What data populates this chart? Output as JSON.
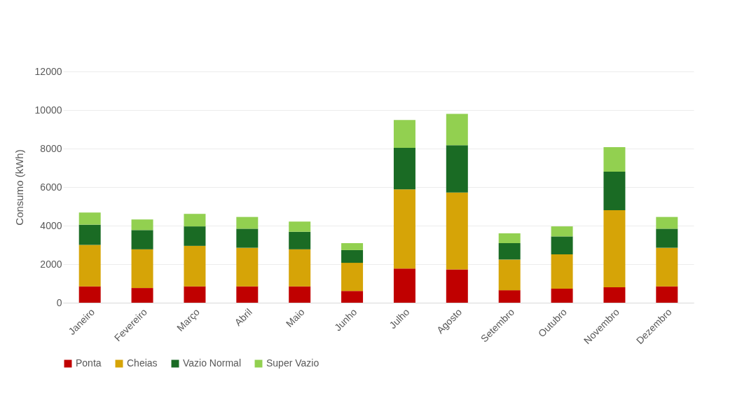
{
  "chart_data": {
    "type": "bar",
    "stacked": true,
    "ylabel": "Consumo (kWh)",
    "categories": [
      "Janeiro",
      "Fevereiro",
      "Março",
      "Abril",
      "Maio",
      "Junho",
      "Julho",
      "Agosto",
      "Setembro",
      "Outubro",
      "Novembro",
      "Dezembro"
    ],
    "series": [
      {
        "name": "Ponta",
        "color": "#c00000",
        "values": [
          850,
          760,
          850,
          850,
          850,
          610,
          1770,
          1730,
          650,
          730,
          800,
          850
        ]
      },
      {
        "name": "Cheias",
        "color": "#d6a407",
        "values": [
          2150,
          2010,
          2100,
          2000,
          1920,
          1460,
          4110,
          3990,
          1590,
          1780,
          4000,
          2000
        ]
      },
      {
        "name": "Vazio Normal",
        "color": "#1a6b24",
        "values": [
          1050,
          1000,
          1010,
          990,
          910,
          660,
          2160,
          2450,
          850,
          930,
          2000,
          990
        ]
      },
      {
        "name": "Super Vazio",
        "color": "#92d050",
        "values": [
          630,
          550,
          650,
          610,
          530,
          360,
          1440,
          1630,
          510,
          520,
          1270,
          610
        ]
      }
    ],
    "ylim": [
      0,
      12000
    ],
    "yticks": [
      0,
      2000,
      4000,
      6000,
      8000,
      10000,
      12000
    ],
    "grid": "y",
    "legend": "bottom"
  }
}
